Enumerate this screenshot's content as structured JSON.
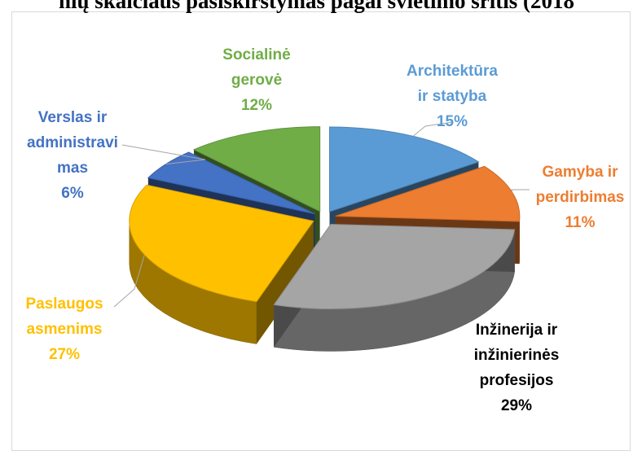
{
  "chart_data": {
    "type": "pie",
    "title_visible": "nių skaičiaus pasiskirstymas pagal švietimo sritis (2018",
    "three_d": true,
    "exploded": true,
    "slices": [
      {
        "label_lines": [
          "Architektūra",
          "ir statyba"
        ],
        "value": 15,
        "value_label": "15%",
        "color": "#5b9bd5"
      },
      {
        "label_lines": [
          "Gamyba ir",
          "perdirbimas"
        ],
        "value": 11,
        "value_label": "11%",
        "color": "#ed7d31"
      },
      {
        "label_lines": [
          "Inžinerija ir",
          "inžinierinės",
          "profesijos"
        ],
        "value": 29,
        "value_label": "29%",
        "color": "#a5a5a5"
      },
      {
        "label_lines": [
          "Paslaugos",
          "asmenims"
        ],
        "value": 27,
        "value_label": "27%",
        "color": "#ffc000"
      },
      {
        "label_lines": [
          "Verslas ir",
          "administravi",
          "mas"
        ],
        "value": 6,
        "value_label": "6%",
        "color": "#4472c4"
      },
      {
        "label_lines": [
          "Socialinė",
          "gerovė"
        ],
        "value": 12,
        "value_label": "12%",
        "color": "#70ad47"
      }
    ],
    "label_colors": [
      "#5b9bd5",
      "#ed7d31",
      "#000000",
      "#ffc000",
      "#4472c4",
      "#70ad47"
    ]
  }
}
